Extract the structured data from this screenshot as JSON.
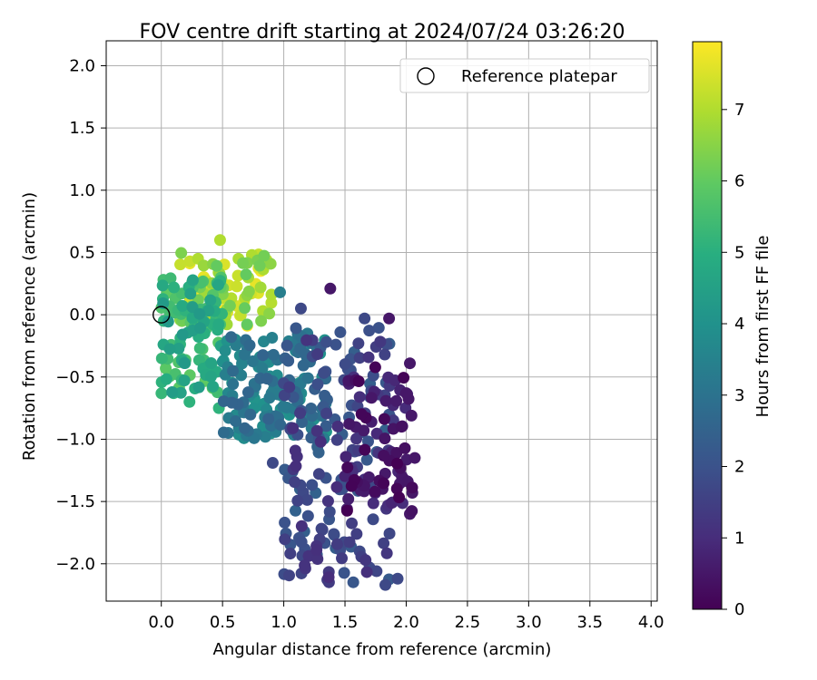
{
  "chart_data": {
    "type": "scatter",
    "title": "FOV centre drift starting at 2024/07/24 03:26:20",
    "xlabel": "Angular distance from reference (arcmin)",
    "ylabel": "Rotation from reference (arcmin)",
    "xlim": [
      -0.45,
      4.05
    ],
    "ylim": [
      -2.3,
      2.2
    ],
    "xticks": [
      0.0,
      0.5,
      1.0,
      1.5,
      2.0,
      2.5,
      3.0,
      3.5,
      4.0
    ],
    "xtick_labels": [
      "0.0",
      "0.5",
      "1.0",
      "1.5",
      "2.0",
      "2.5",
      "3.0",
      "3.5",
      "4.0"
    ],
    "yticks": [
      2.0,
      1.5,
      1.0,
      0.5,
      0.0,
      -0.5,
      -1.0,
      -1.5,
      -2.0
    ],
    "ytick_labels": [
      "2.0",
      "1.5",
      "1.0",
      "0.5",
      "0.0",
      "−0.5",
      "−1.0",
      "−1.5",
      "−2.0"
    ],
    "grid": true,
    "legend": {
      "position": "top-right",
      "entries": [
        {
          "label": "Reference platepar",
          "marker": "open-circle"
        }
      ]
    },
    "reference_point": {
      "x": 0.0,
      "y": 0.0
    },
    "colorbar": {
      "label": "Hours from first FF file",
      "colormap": "viridis",
      "range": [
        0,
        7.95
      ],
      "ticks": [
        0,
        1,
        2,
        3,
        4,
        5,
        6,
        7
      ],
      "tick_labels": [
        "0",
        "1",
        "2",
        "3",
        "4",
        "5",
        "6",
        "7"
      ]
    },
    "clusters": [
      {
        "hours": [
          0,
          1
        ],
        "x_range": [
          1.5,
          2.05
        ],
        "y_range": [
          -1.65,
          -0.4
        ],
        "count": 70,
        "pts": [
          [
            1.98,
            -1.32
          ],
          [
            2.03,
            -1.6
          ],
          [
            2.05,
            -1.43
          ],
          [
            2.07,
            -1.15
          ],
          [
            2.03,
            -0.39
          ],
          [
            1.86,
            -0.03
          ],
          [
            1.38,
            0.21
          ],
          [
            2.0,
            -0.63
          ]
        ]
      },
      {
        "hours": [
          1,
          2.5
        ],
        "x_range": [
          1.0,
          1.9
        ],
        "y_range": [
          -2.15,
          -0.1
        ],
        "count": 180,
        "pts": [
          [
            1.83,
            -2.17
          ],
          [
            1.93,
            -2.12
          ],
          [
            1.7,
            -2.03
          ],
          [
            1.62,
            -1.9
          ],
          [
            1.16,
            -1.43
          ],
          [
            0.91,
            -1.19
          ],
          [
            1.14,
            0.05
          ],
          [
            1.0,
            -0.55
          ],
          [
            1.66,
            -0.03
          ]
        ]
      },
      {
        "hours": [
          2.5,
          4.2
        ],
        "x_range": [
          0.5,
          1.35
        ],
        "y_range": [
          -1.0,
          -0.15
        ],
        "count": 150,
        "pts": [
          [
            0.97,
            0.18
          ],
          [
            0.85,
            -0.98
          ],
          [
            0.67,
            -0.75
          ],
          [
            0.58,
            -0.65
          ]
        ]
      },
      {
        "hours": [
          4.2,
          6.0
        ],
        "x_range": [
          0.0,
          0.5
        ],
        "y_range": [
          -0.65,
          0.3
        ],
        "count": 110,
        "pts": [
          [
            0.1,
            -0.63
          ],
          [
            0.23,
            -0.7
          ],
          [
            0.47,
            -0.75
          ],
          [
            0.02,
            -0.05
          ]
        ]
      },
      {
        "hours": [
          6.0,
          7.95
        ],
        "x_range": [
          0.15,
          0.9
        ],
        "y_range": [
          -0.1,
          0.5
        ],
        "count": 85,
        "pts": [
          [
            0.48,
            0.6
          ],
          [
            0.74,
            0.48
          ],
          [
            0.82,
            0.45
          ],
          [
            0.83,
            0.03
          ],
          [
            0.3,
            0.45
          ]
        ]
      }
    ]
  }
}
